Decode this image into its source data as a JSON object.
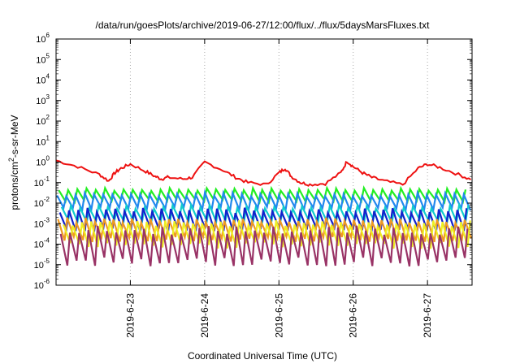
{
  "chart_data": {
    "type": "line",
    "title": "/data/run/goesPlots/archive/2019-06-27/12:00/flux/../flux/5daysMarsFluxes.txt",
    "xlabel": "Coordinated Universal Time (UTC)",
    "ylabel": "protons/cm²-s-sr-MeV",
    "ylabel_parts": [
      "protons/cm",
      "2",
      "-s-sr-MeV"
    ],
    "yscale": "log",
    "ylim": [
      1e-06,
      1000000.0
    ],
    "xlim": [
      "2019-06-22T00:00",
      "2019-06-27T14:24"
    ],
    "grid": "x-dotted",
    "y_ticks": [
      {
        "base": "10",
        "exp": "-6",
        "value": 1e-06
      },
      {
        "base": "10",
        "exp": "-5",
        "value": 1e-05
      },
      {
        "base": "10",
        "exp": "-4",
        "value": 0.0001
      },
      {
        "base": "10",
        "exp": "-3",
        "value": 0.001
      },
      {
        "base": "10",
        "exp": "-2",
        "value": 0.01
      },
      {
        "base": "10",
        "exp": "-1",
        "value": 0.1
      },
      {
        "base": "10",
        "exp": "0",
        "value": 1.0
      },
      {
        "base": "10",
        "exp": "1",
        "value": 10.0
      },
      {
        "base": "10",
        "exp": "2",
        "value": 100.0
      },
      {
        "base": "10",
        "exp": "3",
        "value": 1000.0
      },
      {
        "base": "10",
        "exp": "4",
        "value": 10000.0
      },
      {
        "base": "10",
        "exp": "5",
        "value": 100000.0
      },
      {
        "base": "10",
        "exp": "6",
        "value": 1000000.0
      }
    ],
    "x_ticks": [
      {
        "label": "2019-6-23",
        "value": "2019-06-23T00:00"
      },
      {
        "label": "2019-6-24",
        "value": "2019-06-24T00:00"
      },
      {
        "label": "2019-6-25",
        "value": "2019-06-25T00:00"
      },
      {
        "label": "2019-6-26",
        "value": "2019-06-26T00:00"
      },
      {
        "label": "2019-6-27",
        "value": "2019-06-27T00:00"
      }
    ],
    "series": [
      {
        "color": "#ee1111",
        "x": [
          "2019-06-22T00:00",
          "2019-06-22T07:00",
          "2019-06-22T14:00",
          "2019-06-22T17:00",
          "2019-06-22T19:00",
          "2019-06-22T21:00",
          "2019-06-23T00:00",
          "2019-06-23T05:00",
          "2019-06-23T08:00",
          "2019-06-23T10:00",
          "2019-06-23T12:00",
          "2019-06-23T17:00",
          "2019-06-23T20:00",
          "2019-06-24T00:00",
          "2019-06-24T06:00",
          "2019-06-24T10:00",
          "2019-06-24T14:00",
          "2019-06-24T20:00",
          "2019-06-25T00:00",
          "2019-06-25T02:00",
          "2019-06-25T04:00",
          "2019-06-25T07:00",
          "2019-06-25T10:00",
          "2019-06-25T15:00",
          "2019-06-25T20:00",
          "2019-06-25T22:00",
          "2019-06-26T00:00",
          "2019-06-26T03:00",
          "2019-06-26T06:00",
          "2019-06-26T10:00",
          "2019-06-26T16:00",
          "2019-06-26T21:00",
          "2019-06-27T00:00",
          "2019-06-27T04:00",
          "2019-06-27T10:00",
          "2019-06-27T14:00"
        ],
        "values": [
          1.2,
          0.6,
          0.25,
          0.12,
          0.3,
          0.5,
          0.8,
          0.35,
          0.2,
          0.15,
          0.18,
          0.15,
          0.18,
          1.0,
          0.4,
          0.18,
          0.1,
          0.08,
          0.3,
          0.5,
          0.2,
          0.1,
          0.08,
          0.09,
          0.3,
          1.1,
          0.6,
          0.3,
          0.18,
          0.12,
          0.08,
          0.5,
          0.8,
          0.55,
          0.25,
          0.14
        ],
        "noise": 0.15
      },
      {
        "color": "#22ee22",
        "base": 0.025,
        "amp": 0.35,
        "spikes": 45,
        "phase": 0.3
      },
      {
        "color": "#2288ee",
        "base": 0.012,
        "amp": 0.45,
        "spikes": 45,
        "phase": 0.1
      },
      {
        "color": "#11cccc",
        "base": 0.003,
        "amp": 0.45,
        "spikes": 45,
        "phase": 0.6
      },
      {
        "color": "#1122cc",
        "base": 0.0015,
        "amp": 0.6,
        "spikes": 45,
        "phase": 0.4
      },
      {
        "color": "#ee9922",
        "base": 0.0005,
        "amp": 0.6,
        "spikes": 45,
        "phase": 0.2
      },
      {
        "color": "#eeee22",
        "base": 0.0003,
        "amp": 0.7,
        "spikes": 45,
        "phase": 0.8
      },
      {
        "color": "#993366",
        "base": 8e-05,
        "amp": 1.0,
        "spikes": 45,
        "phase": 0.5
      }
    ]
  }
}
